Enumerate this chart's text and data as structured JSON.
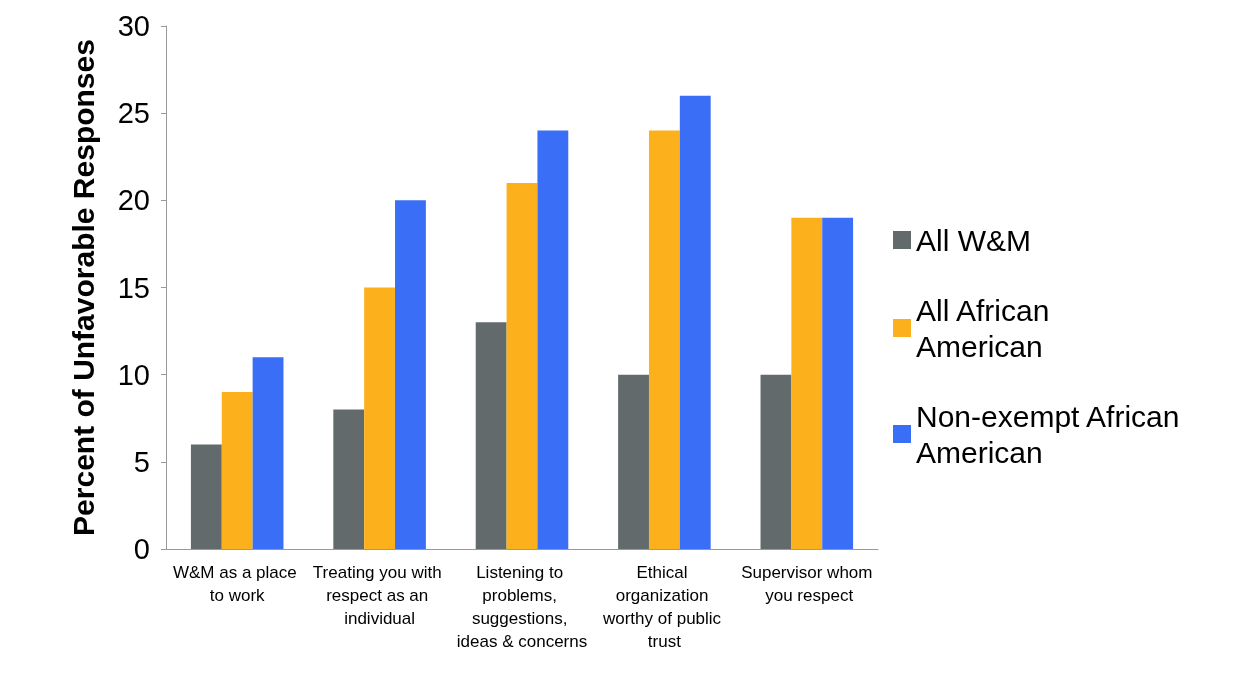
{
  "chart_data": {
    "type": "bar",
    "ylabel": "Percent of Unfavorable Responses",
    "categories": [
      "W&M as a place to work",
      "Treating you with respect as an individual",
      "Listening to problems, suggestions, ideas & concerns",
      "Ethical organization worthy of public trust",
      "Supervisor whom you respect"
    ],
    "series": [
      {
        "name": "All W&M",
        "color": "#636a6c",
        "values": [
          6,
          8,
          13,
          10,
          10
        ]
      },
      {
        "name": "All African American",
        "color": "#fbb01c",
        "values": [
          9,
          15,
          21,
          24,
          19
        ]
      },
      {
        "name": "Non-exempt African American",
        "color": "#3b6ef6",
        "values": [
          11,
          20,
          24,
          26,
          19
        ]
      }
    ],
    "ylim": [
      0,
      30
    ],
    "yticks": [
      0,
      5,
      10,
      15,
      20,
      25,
      30
    ],
    "grid": false,
    "legend": "right"
  }
}
